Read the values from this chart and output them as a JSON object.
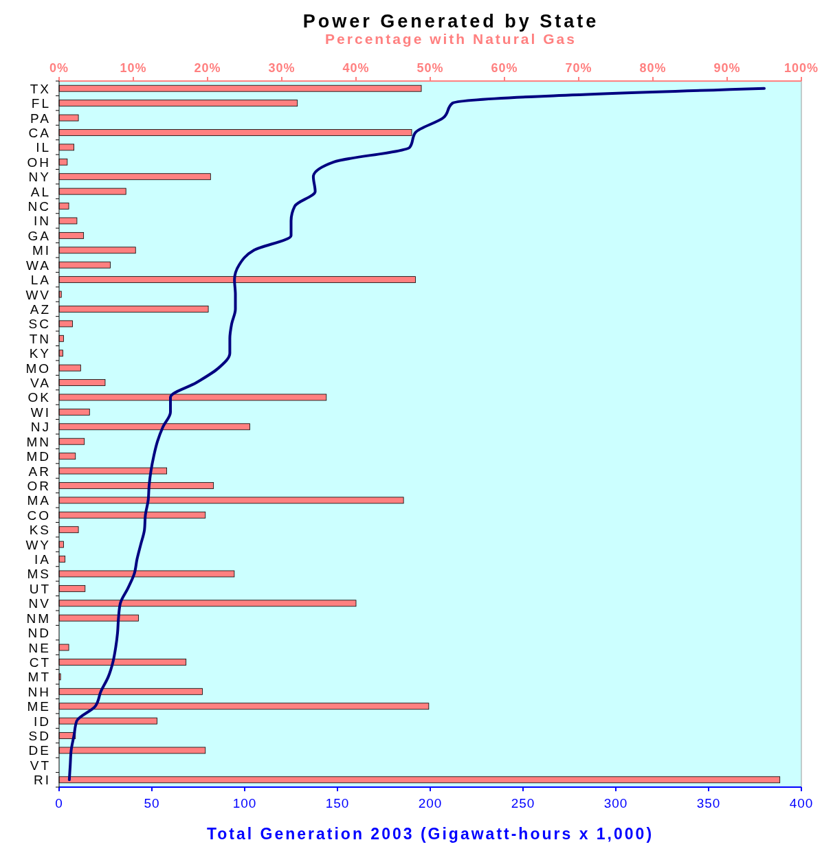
{
  "chart_data": {
    "type": "bar",
    "orientation": "horizontal",
    "title": "Power Generated by State",
    "subtitle": "Percentage with Natural Gas",
    "xlabel": "Total Generation 2003 (Gigawatt-hours x 1,000)",
    "categories": [
      "TX",
      "FL",
      "PA",
      "CA",
      "IL",
      "OH",
      "NY",
      "AL",
      "NC",
      "IN",
      "GA",
      "MI",
      "WA",
      "LA",
      "WV",
      "AZ",
      "SC",
      "TN",
      "KY",
      "MO",
      "VA",
      "OK",
      "WI",
      "NJ",
      "MN",
      "MD",
      "AR",
      "OR",
      "MA",
      "CO",
      "KS",
      "WY",
      "IA",
      "MS",
      "UT",
      "NV",
      "NM",
      "ND",
      "NE",
      "CT",
      "MT",
      "NH",
      "ME",
      "ID",
      "SD",
      "DE",
      "VT",
      "RI"
    ],
    "xlim": [
      0,
      400
    ],
    "xticks": [
      0,
      50,
      100,
      150,
      200,
      250,
      300,
      350,
      400
    ],
    "x2lim": [
      0,
      100
    ],
    "x2ticks": [
      {
        "value": 0,
        "label": "0%"
      },
      {
        "value": 10,
        "label": "10%"
      },
      {
        "value": 20,
        "label": "20%"
      },
      {
        "value": 30,
        "label": "30%"
      },
      {
        "value": 40,
        "label": "40%"
      },
      {
        "value": 50,
        "label": "50%"
      },
      {
        "value": 60,
        "label": "60%"
      },
      {
        "value": 70,
        "label": "70%"
      },
      {
        "value": 80,
        "label": "80%"
      },
      {
        "value": 90,
        "label": "90%"
      },
      {
        "value": 100,
        "label": "100%"
      }
    ],
    "series": [
      {
        "axis": "x2",
        "color": "#ff8080",
        "values": [
          48.8,
          32.1,
          2.6,
          47.5,
          2.0,
          1.1,
          20.4,
          9.0,
          1.3,
          2.4,
          3.3,
          10.3,
          6.9,
          48.0,
          0.3,
          20.1,
          1.8,
          0.6,
          0.5,
          2.9,
          6.2,
          36.0,
          4.1,
          25.7,
          3.4,
          2.2,
          14.5,
          20.8,
          46.4,
          19.7,
          2.6,
          0.6,
          0.8,
          23.6,
          3.5,
          40.0,
          10.7,
          0,
          1.3,
          17.1,
          0.2,
          19.3,
          49.8,
          13.2,
          2.2,
          19.7,
          0,
          97.1
        ]
      },
      {
        "type": "line",
        "color": "#000080",
        "values": [
          380,
          212,
          207,
          192,
          189,
          148,
          137,
          138,
          127,
          125,
          125,
          105,
          97,
          94.5,
          95,
          95,
          93,
          92,
          92,
          86,
          74,
          60,
          60,
          56,
          53,
          51,
          49.5,
          48.5,
          48,
          46.5,
          46,
          44,
          42,
          40.5,
          37,
          33,
          32,
          31.5,
          30.5,
          29,
          26.5,
          22.5,
          19.5,
          9.5,
          8,
          6.5,
          6,
          5.5
        ]
      }
    ],
    "grid": false
  }
}
